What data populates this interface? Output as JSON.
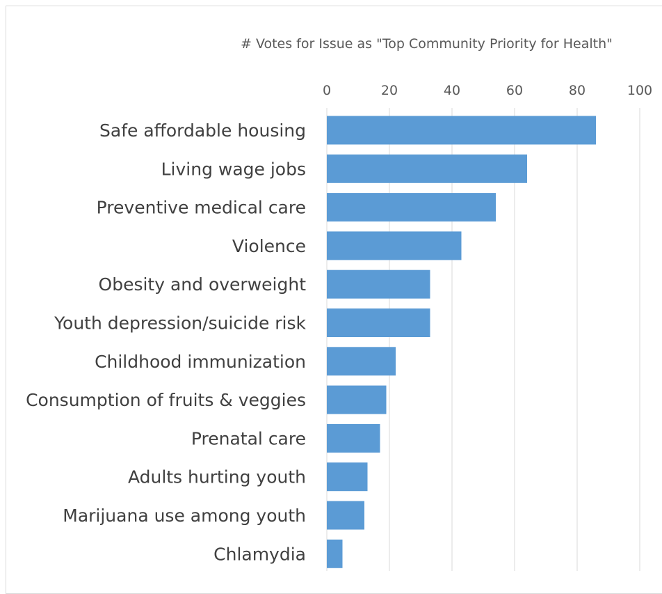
{
  "chart_data": {
    "type": "bar",
    "orientation": "horizontal",
    "title": "",
    "xlabel": "# Votes for Issue as \"Top Community Priority for Health\"",
    "ylabel": "",
    "xlim": [
      0,
      100
    ],
    "xticks": [
      0,
      20,
      40,
      60,
      80,
      100
    ],
    "axis_position": "top",
    "grid": "vertical",
    "categories": [
      "Safe affordable housing",
      "Living wage jobs",
      "Preventive medical care",
      "Violence",
      "Obesity and overweight",
      "Youth depression/suicide risk",
      "Childhood immunization",
      "Consumption of fruits & veggies",
      "Prenatal care",
      "Adults hurting youth",
      "Marijuana use among youth",
      "Chlamydia"
    ],
    "values": [
      86,
      64,
      54,
      43,
      33,
      33,
      22,
      19,
      17,
      13,
      12,
      5
    ],
    "bar_color": "#5b9bd5"
  }
}
